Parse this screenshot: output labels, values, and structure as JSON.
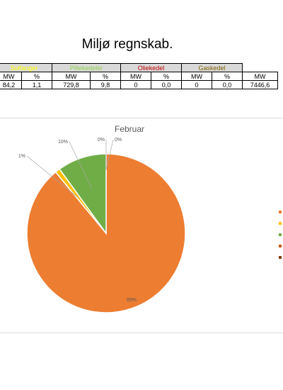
{
  "page": {
    "title": "Miljø regnskab."
  },
  "table": {
    "groups": [
      {
        "label": "Solfanger",
        "color": "#ffff00"
      },
      {
        "label": "Pillekedeler",
        "color": "#92d050"
      },
      {
        "label": "Oliekedel",
        "color": "#c00000"
      },
      {
        "label": "Gaskedel",
        "color": "#7f6000"
      }
    ],
    "units": [
      "MW",
      "%",
      "MW",
      "%",
      "MW",
      "%",
      "MW",
      "%",
      "MW"
    ],
    "values": [
      "84,2",
      "1,1",
      "729,8",
      "9,8",
      "0",
      "0,0",
      "0",
      "0,0",
      "7446,6"
    ]
  },
  "chart_data": {
    "type": "pie",
    "title": "Februar",
    "slices": [
      {
        "value": 89,
        "label": "89%",
        "color": "#ed7d31"
      },
      {
        "value": 1,
        "label": "1%",
        "color": "#ffc000"
      },
      {
        "value": 10,
        "label": "10%",
        "color": "#70ad47"
      },
      {
        "value": 0,
        "label": "0%",
        "color": "#c55a11"
      },
      {
        "value": 0,
        "label": "0%",
        "color": "#843c0c"
      }
    ],
    "legend": {
      "placement": "right",
      "colors": [
        "#ed7d31",
        "#ffc000",
        "#70ad47",
        "#c55a11",
        "#843c0c"
      ]
    }
  }
}
